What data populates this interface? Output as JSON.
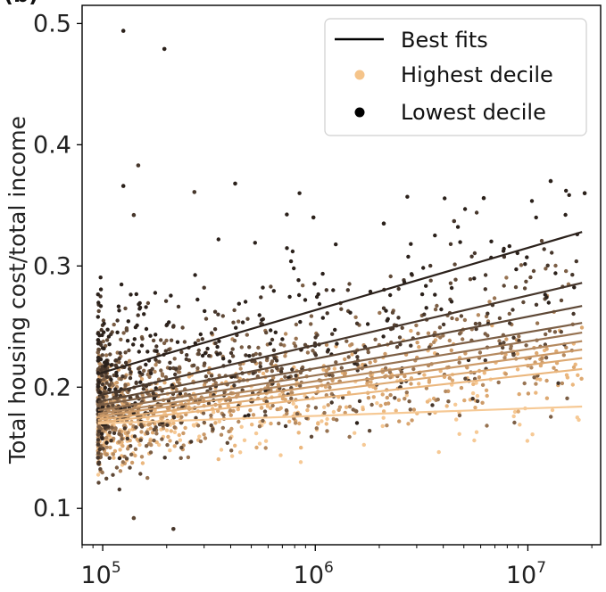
{
  "chart_data": {
    "type": "scatter",
    "panel_label": "(b)",
    "xlabel": "",
    "ylabel": "Total housing cost/total income",
    "xscale": "log",
    "xlim": [
      80000,
      22000000
    ],
    "ylim": [
      0.07,
      0.515
    ],
    "x_ticks": [
      {
        "base": "10",
        "exp": "5",
        "value": 100000
      },
      {
        "base": "10",
        "exp": "6",
        "value": 1000000
      },
      {
        "base": "10",
        "exp": "7",
        "value": 10000000
      }
    ],
    "y_ticks": [
      {
        "label": "0.1",
        "value": 0.1
      },
      {
        "label": "0.2",
        "value": 0.2
      },
      {
        "label": "0.3",
        "value": 0.3
      },
      {
        "label": "0.4",
        "value": 0.4
      },
      {
        "label": "0.5",
        "value": 0.5
      }
    ],
    "legend": {
      "placement": "top-right",
      "entries": [
        {
          "label": "Best fits",
          "marker": "line",
          "color": "#000000"
        },
        {
          "label": "Highest decile",
          "marker": "dot",
          "color": "#f5c48a"
        },
        {
          "label": "Lowest decile",
          "marker": "dot",
          "color": "#000000"
        }
      ]
    },
    "color_scale": [
      "#000000",
      "#f5c48a"
    ],
    "fit_lines": [
      {
        "decile": 1,
        "color": "#2b211b",
        "x": [
          95000,
          18000000
        ],
        "y": [
          0.211,
          0.328
        ]
      },
      {
        "decile": 2,
        "color": "#46362b",
        "x": [
          95000,
          18000000
        ],
        "y": [
          0.193,
          0.286
        ]
      },
      {
        "decile": 3,
        "color": "#5e4836",
        "x": [
          95000,
          18000000
        ],
        "y": [
          0.188,
          0.267
        ]
      },
      {
        "decile": 4,
        "color": "#7b5e45",
        "x": [
          95000,
          18000000
        ],
        "y": [
          0.185,
          0.253
        ]
      },
      {
        "decile": 5,
        "color": "#977352",
        "x": [
          95000,
          18000000
        ],
        "y": [
          0.181,
          0.245
        ]
      },
      {
        "decile": 6,
        "color": "#b58a60",
        "x": [
          95000,
          18000000
        ],
        "y": [
          0.178,
          0.238
        ]
      },
      {
        "decile": 7,
        "color": "#cc9a68",
        "x": [
          95000,
          18000000
        ],
        "y": [
          0.176,
          0.231
        ]
      },
      {
        "decile": 8,
        "color": "#dda972",
        "x": [
          95000,
          18000000
        ],
        "y": [
          0.173,
          0.224
        ]
      },
      {
        "decile": 9,
        "color": "#ebb77e",
        "x": [
          95000,
          18000000
        ],
        "y": [
          0.171,
          0.215
        ]
      },
      {
        "decile": 10,
        "color": "#f6c995",
        "x": [
          95000,
          18000000
        ],
        "y": [
          0.17,
          0.184
        ]
      }
    ],
    "outliers": [
      {
        "x": 125000,
        "y": 0.494,
        "decile": 1
      },
      {
        "x": 195000,
        "y": 0.479,
        "decile": 1
      },
      {
        "x": 147000,
        "y": 0.383,
        "decile": 2
      },
      {
        "x": 125000,
        "y": 0.366,
        "decile": 1
      },
      {
        "x": 420000,
        "y": 0.368,
        "decile": 1
      },
      {
        "x": 270000,
        "y": 0.361,
        "decile": 2
      },
      {
        "x": 12800000,
        "y": 0.37,
        "decile": 1
      },
      {
        "x": 18500000,
        "y": 0.36,
        "decile": 1
      },
      {
        "x": 140000,
        "y": 0.342,
        "decile": 2
      },
      {
        "x": 215000,
        "y": 0.083,
        "decile": 2
      },
      {
        "x": 140000,
        "y": 0.092,
        "decile": 3
      },
      {
        "x": 980000,
        "y": 0.34,
        "decile": 1
      },
      {
        "x": 2100000,
        "y": 0.335,
        "decile": 1
      },
      {
        "x": 4500000,
        "y": 0.337,
        "decile": 2
      },
      {
        "x": 6200000,
        "y": 0.356,
        "decile": 1
      }
    ],
    "cloud": {
      "x_range": [
        95000,
        18000000
      ],
      "y_spread": [
        0.04,
        0.035,
        0.03,
        0.028,
        0.025,
        0.022,
        0.02,
        0.018,
        0.017,
        0.016
      ]
    }
  }
}
